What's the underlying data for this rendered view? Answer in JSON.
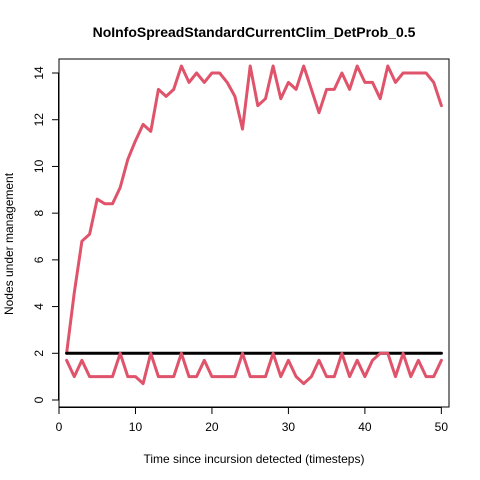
{
  "chart_data": {
    "type": "line",
    "title": "NoInfoSpreadStandardCurrentClim_DetProb_0.5",
    "xlabel": "Time since incursion detected (timesteps)",
    "ylabel": "Nodes under management",
    "xlim": [
      0,
      51
    ],
    "ylim": [
      -0.3,
      14.6
    ],
    "xticks": [
      0,
      10,
      20,
      30,
      40,
      50
    ],
    "yticks": [
      0,
      2,
      4,
      6,
      8,
      10,
      12,
      14
    ],
    "grid": false,
    "legend": "none",
    "series": [
      {
        "color": "#DF536B",
        "x": [
          1,
          2,
          3,
          4,
          5,
          6,
          7,
          8,
          9,
          10,
          11,
          12,
          13,
          14,
          15,
          16,
          17,
          18,
          19,
          20,
          21,
          22,
          23,
          24,
          25,
          26,
          27,
          28,
          29,
          30,
          31,
          32,
          33,
          34,
          35,
          36,
          37,
          38,
          39,
          40,
          41,
          42,
          43,
          44,
          45,
          46,
          47,
          48,
          49,
          50
        ],
        "values": [
          2,
          4.6,
          6.8,
          7.1,
          8.6,
          8.4,
          8.4,
          9.1,
          10.3,
          11.1,
          11.8,
          11.5,
          13.3,
          13.0,
          13.3,
          14.3,
          13.6,
          14.0,
          13.6,
          14.0,
          14.0,
          13.6,
          13.0,
          11.6,
          14.3,
          12.6,
          12.9,
          14.3,
          12.9,
          13.6,
          13.3,
          14.3,
          13.3,
          12.3,
          13.3,
          13.3,
          14.0,
          13.3,
          14.3,
          13.6,
          13.6,
          12.9,
          14.3,
          13.6,
          14.0,
          14.0,
          14.0,
          14.0,
          13.6,
          12.6
        ]
      },
      {
        "color": "#000000",
        "x": [
          1,
          50
        ],
        "values": [
          2,
          2
        ]
      },
      {
        "color": "#DF536B",
        "x": [
          1,
          2,
          3,
          4,
          5,
          6,
          7,
          8,
          9,
          10,
          11,
          12,
          13,
          14,
          15,
          16,
          17,
          18,
          19,
          20,
          21,
          22,
          23,
          24,
          25,
          26,
          27,
          28,
          29,
          30,
          31,
          32,
          33,
          34,
          35,
          36,
          37,
          38,
          39,
          40,
          41,
          42,
          43,
          44,
          45,
          46,
          47,
          48,
          49,
          50
        ],
        "values": [
          1.7,
          1.0,
          1.7,
          1.0,
          1.0,
          1.0,
          1.0,
          2.0,
          1.0,
          1.0,
          0.7,
          2.0,
          1.0,
          1.0,
          1.0,
          2.0,
          1.0,
          1.0,
          1.7,
          1.0,
          1.0,
          1.0,
          1.0,
          2.0,
          1.0,
          1.0,
          1.0,
          2.0,
          1.0,
          1.7,
          1.0,
          0.7,
          1.0,
          1.7,
          1.0,
          1.0,
          2.0,
          1.0,
          1.7,
          1.0,
          1.7,
          2.0,
          2.0,
          1.0,
          2.0,
          1.0,
          1.7,
          1.0,
          1.0,
          1.7
        ]
      }
    ]
  }
}
